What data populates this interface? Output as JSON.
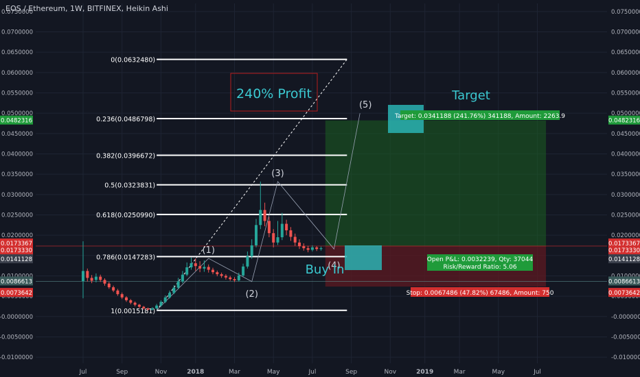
{
  "header": {
    "title": "EOS / Ethereum, 1W, BITFINEX, Heikin Ashi"
  },
  "colors": {
    "background": "#131722",
    "up": "#26a69a",
    "down": "#ef5350",
    "grid": "#1e2433",
    "axis_text": "#b2b5be",
    "fib": "#ffffff",
    "profit_zone": "#1b5e20",
    "loss_zone": "#5d1a22",
    "cyan_box": "#2ab3b3",
    "cyan_text": "#3bc9d1",
    "price_green": "#1f9b3a",
    "price_red": "#d32f2f",
    "price_gray": "#3a3f4b",
    "price_teal": "#3a5a5a"
  },
  "chart_data": {
    "type": "candlestick",
    "title": "EOS / Ethereum, 1W, BITFINEX, Heikin Ashi",
    "xlabel": "",
    "ylabel": "",
    "ylim": [
      -0.0115,
      0.077
    ],
    "y_ticks": [
      "0.0750000",
      "0.0700000",
      "0.0650000",
      "0.0600000",
      "0.0550000",
      "0.0500000",
      "0.0450000",
      "0.0400000",
      "0.0350000",
      "0.0300000",
      "0.0250000",
      "0.0200000",
      "0.0150000",
      "0.0100000",
      "0.0050000",
      "-0.0000000",
      "-0.0050000",
      "-0.0100000"
    ],
    "y_tick_values": [
      0.075,
      0.07,
      0.065,
      0.06,
      0.055,
      0.05,
      0.045,
      0.04,
      0.035,
      0.03,
      0.025,
      0.02,
      0.015,
      0.01,
      0.005,
      0,
      -0.005,
      -0.01
    ],
    "x_tick_labels": [
      "Jul",
      "Sep",
      "Nov",
      "2018",
      "Mar",
      "May",
      "Jul",
      "Sep",
      "Nov",
      "2019",
      "Mar",
      "May",
      "Jul"
    ],
    "x_tick_weeks": [
      0,
      9,
      18,
      26,
      35,
      44,
      53,
      62,
      71,
      79,
      87,
      96,
      105
    ],
    "candles": [
      {
        "o": 0.0087,
        "c": 0.0112,
        "h": 0.0185,
        "l": 0.0045
      },
      {
        "o": 0.0112,
        "c": 0.0095,
        "h": 0.0118,
        "l": 0.0086
      },
      {
        "o": 0.0095,
        "c": 0.0088,
        "h": 0.0102,
        "l": 0.0082
      },
      {
        "o": 0.009,
        "c": 0.0098,
        "h": 0.0106,
        "l": 0.0084
      },
      {
        "o": 0.0098,
        "c": 0.009,
        "h": 0.0103,
        "l": 0.0085
      },
      {
        "o": 0.009,
        "c": 0.0081,
        "h": 0.0094,
        "l": 0.0076
      },
      {
        "o": 0.0081,
        "c": 0.0072,
        "h": 0.0085,
        "l": 0.0068
      },
      {
        "o": 0.0072,
        "c": 0.0064,
        "h": 0.0076,
        "l": 0.006
      },
      {
        "o": 0.0064,
        "c": 0.0055,
        "h": 0.0068,
        "l": 0.0051
      },
      {
        "o": 0.0055,
        "c": 0.0047,
        "h": 0.0059,
        "l": 0.0043
      },
      {
        "o": 0.0047,
        "c": 0.004,
        "h": 0.005,
        "l": 0.0036
      },
      {
        "o": 0.004,
        "c": 0.0034,
        "h": 0.0043,
        "l": 0.003
      },
      {
        "o": 0.0034,
        "c": 0.0029,
        "h": 0.0037,
        "l": 0.0025
      },
      {
        "o": 0.0029,
        "c": 0.0024,
        "h": 0.0031,
        "l": 0.0021
      },
      {
        "o": 0.0024,
        "c": 0.002,
        "h": 0.0026,
        "l": 0.0017
      },
      {
        "o": 0.002,
        "c": 0.0017,
        "h": 0.0022,
        "l": 0.0015
      },
      {
        "o": 0.0017,
        "c": 0.002,
        "h": 0.0023,
        "l": 0.0015
      },
      {
        "o": 0.002,
        "c": 0.0027,
        "h": 0.0031,
        "l": 0.0018
      },
      {
        "o": 0.0027,
        "c": 0.0036,
        "h": 0.004,
        "l": 0.0024
      },
      {
        "o": 0.0036,
        "c": 0.0047,
        "h": 0.0052,
        "l": 0.0033
      },
      {
        "o": 0.0047,
        "c": 0.0058,
        "h": 0.0064,
        "l": 0.0044
      },
      {
        "o": 0.0058,
        "c": 0.0071,
        "h": 0.0077,
        "l": 0.0055
      },
      {
        "o": 0.0071,
        "c": 0.0086,
        "h": 0.0095,
        "l": 0.0067
      },
      {
        "o": 0.0086,
        "c": 0.0103,
        "h": 0.0112,
        "l": 0.0082
      },
      {
        "o": 0.0103,
        "c": 0.0121,
        "h": 0.0133,
        "l": 0.0099
      },
      {
        "o": 0.0121,
        "c": 0.0131,
        "h": 0.0145,
        "l": 0.0115
      },
      {
        "o": 0.0131,
        "c": 0.0124,
        "h": 0.0143,
        "l": 0.0112
      },
      {
        "o": 0.0124,
        "c": 0.0118,
        "h": 0.0136,
        "l": 0.0109
      },
      {
        "o": 0.0118,
        "c": 0.0122,
        "h": 0.0138,
        "l": 0.011
      },
      {
        "o": 0.0122,
        "c": 0.0115,
        "h": 0.0128,
        "l": 0.0108
      },
      {
        "o": 0.0115,
        "c": 0.0109,
        "h": 0.012,
        "l": 0.0104
      },
      {
        "o": 0.0109,
        "c": 0.0104,
        "h": 0.0113,
        "l": 0.0099
      },
      {
        "o": 0.0104,
        "c": 0.01,
        "h": 0.0108,
        "l": 0.0095
      },
      {
        "o": 0.01,
        "c": 0.0096,
        "h": 0.0104,
        "l": 0.0091
      },
      {
        "o": 0.0096,
        "c": 0.0092,
        "h": 0.01,
        "l": 0.0088
      },
      {
        "o": 0.0092,
        "c": 0.0089,
        "h": 0.0097,
        "l": 0.0085
      },
      {
        "o": 0.0089,
        "c": 0.0101,
        "h": 0.0108,
        "l": 0.0086
      },
      {
        "o": 0.0101,
        "c": 0.0123,
        "h": 0.013,
        "l": 0.0098
      },
      {
        "o": 0.0123,
        "c": 0.0148,
        "h": 0.016,
        "l": 0.0118
      },
      {
        "o": 0.0148,
        "c": 0.0175,
        "h": 0.019,
        "l": 0.0142
      },
      {
        "o": 0.0175,
        "c": 0.0225,
        "h": 0.024,
        "l": 0.017
      },
      {
        "o": 0.0225,
        "c": 0.0262,
        "h": 0.0332,
        "l": 0.0215
      },
      {
        "o": 0.0262,
        "c": 0.0235,
        "h": 0.028,
        "l": 0.0222
      },
      {
        "o": 0.0235,
        "c": 0.0205,
        "h": 0.0245,
        "l": 0.0195
      },
      {
        "o": 0.0205,
        "c": 0.0182,
        "h": 0.0215,
        "l": 0.017
      },
      {
        "o": 0.0182,
        "c": 0.0195,
        "h": 0.0235,
        "l": 0.0176
      },
      {
        "o": 0.0195,
        "c": 0.0228,
        "h": 0.0255,
        "l": 0.0188
      },
      {
        "o": 0.0228,
        "c": 0.0212,
        "h": 0.0238,
        "l": 0.02
      },
      {
        "o": 0.0212,
        "c": 0.0196,
        "h": 0.022,
        "l": 0.0186
      },
      {
        "o": 0.0196,
        "c": 0.0182,
        "h": 0.0204,
        "l": 0.0174
      },
      {
        "o": 0.0182,
        "c": 0.0173,
        "h": 0.019,
        "l": 0.0166
      },
      {
        "o": 0.0173,
        "c": 0.0168,
        "h": 0.018,
        "l": 0.0162
      },
      {
        "o": 0.0168,
        "c": 0.0164,
        "h": 0.0174,
        "l": 0.0158
      },
      {
        "o": 0.0164,
        "c": 0.017,
        "h": 0.0175,
        "l": 0.016
      },
      {
        "o": 0.017,
        "c": 0.0166,
        "h": 0.0173,
        "l": 0.0161
      },
      {
        "o": 0.0166,
        "c": 0.0168,
        "h": 0.0172,
        "l": 0.0162
      }
    ],
    "fib_levels": [
      {
        "label": "0(0.0632480)",
        "value": 0.063248
      },
      {
        "label": "0.236(0.0486798)",
        "value": 0.0486798
      },
      {
        "label": "0.382(0.0396672)",
        "value": 0.0396672
      },
      {
        "label": "0.5(0.0323831)",
        "value": 0.0323831
      },
      {
        "label": "0.618(0.0250990)",
        "value": 0.025099
      },
      {
        "label": "0.786(0.0147283)",
        "value": 0.0147283
      },
      {
        "label": "1(0.0015181)",
        "value": 0.0015181
      }
    ],
    "fib_x_weeks": [
      17,
      61
    ],
    "trend_line": {
      "x_weeks": [
        17,
        61
      ],
      "y": [
        0.0015181,
        0.063248
      ]
    },
    "waves": [
      {
        "label": "(1)",
        "x_week": 29,
        "y": 0.0143
      },
      {
        "label": "(2)",
        "x_week": 39,
        "y": 0.0086
      },
      {
        "label": "(3)",
        "x_week": 45,
        "y": 0.0332
      },
      {
        "label": "(4)",
        "x_week": 58,
        "y": 0.0166
      },
      {
        "label": "(5)",
        "x_week": 64,
        "y": 0.05
      }
    ],
    "position": {
      "entry": 0.0173367,
      "target": 0.0482316,
      "stop": 0.0073642,
      "x_weeks": [
        56,
        107
      ]
    },
    "price_labels": [
      {
        "text": "0.0482316",
        "value": 0.0482316,
        "kind": "green"
      },
      {
        "text": "0.0173367",
        "value": 0.0173367,
        "kind": "red"
      },
      {
        "text": "0.0173330",
        "value": 0.017333,
        "kind": "red"
      },
      {
        "text": "0.0141128",
        "value": 0.0141128,
        "kind": "gray"
      },
      {
        "text": "0.0086613",
        "value": 0.0086613,
        "kind": "teal"
      },
      {
        "text": "0.0073642",
        "value": 0.0073642,
        "kind": "red"
      }
    ],
    "annotations": {
      "profit_text": "240% Profit",
      "target_text": "Target",
      "buy_in_text": "Buy In",
      "target_box": "Target: 0.0341188 (241.76%) 341188, Amount: 2263.9",
      "pnl_box_line1": "Open P&L: 0.0032239, Qty: 37044",
      "pnl_box_line2": "Risk/Reward Ratio: 5.06",
      "stop_box": "Stop: 0.0067486 (47.82%) 67486, Amount: 750"
    }
  }
}
